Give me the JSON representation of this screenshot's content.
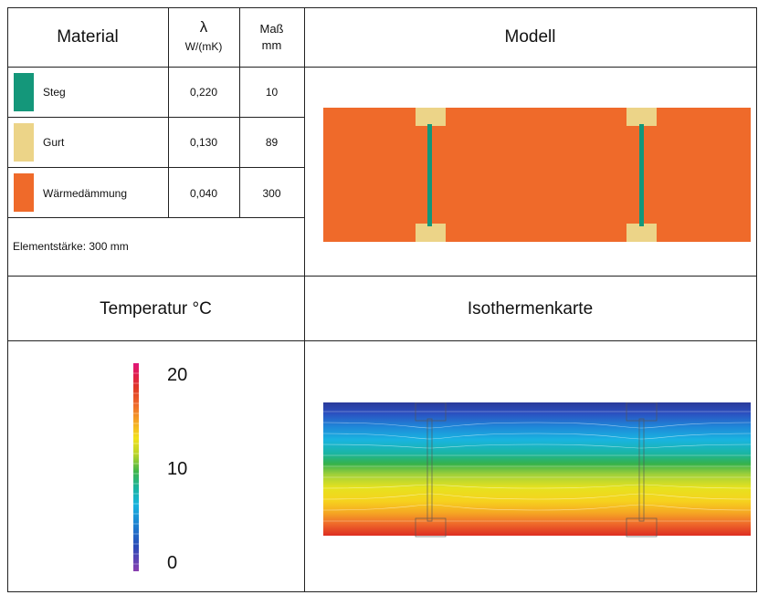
{
  "table": {
    "headers": {
      "material": "Material",
      "lambda_symbol": "λ",
      "lambda_unit": "W/(mK)",
      "mass": "Maß",
      "mass_unit": "mm",
      "model": "Modell"
    },
    "rows": [
      {
        "name": "Steg",
        "lambda": "0,220",
        "mass": "10",
        "color": "#14977a"
      },
      {
        "name": "Gurt",
        "lambda": "0,130",
        "mass": "89",
        "color": "#ecd488"
      },
      {
        "name": "Wärmedämmung",
        "lambda": "0,040",
        "mass": "300",
        "color": "#ef6a2a"
      }
    ],
    "element_thickness": "Elementstärke: 300 mm"
  },
  "lower": {
    "temperature_title": "Temperatur °C",
    "isotherm_title": "Isothermenkarte"
  },
  "legend": {
    "labels": [
      "20",
      "10",
      "0"
    ],
    "min": 0,
    "max": 20
  },
  "colors": {
    "steg": "#14977a",
    "gurt": "#ecd488",
    "insulation": "#ef6a2a"
  }
}
